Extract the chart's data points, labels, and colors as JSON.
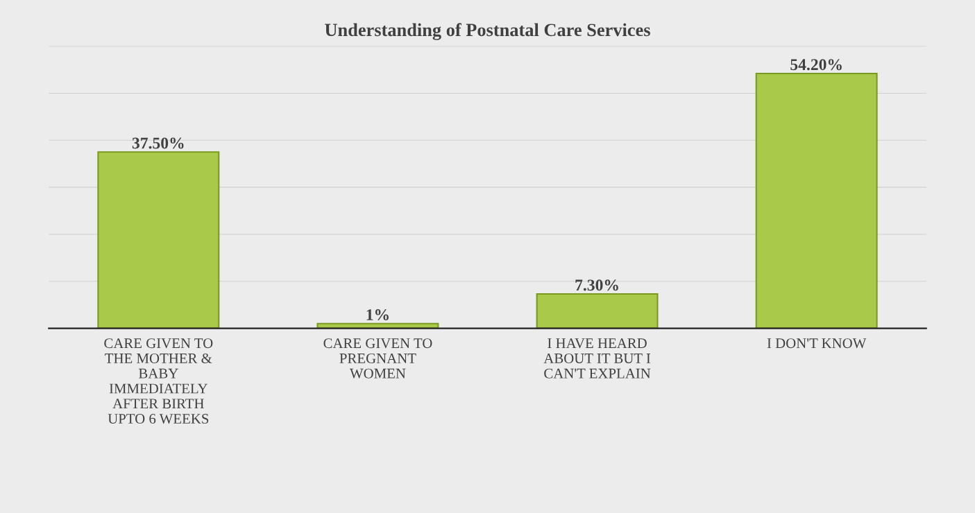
{
  "chart_data": {
    "type": "bar",
    "title": "Understanding of Postnatal Care Services",
    "categories": [
      "CARE GIVEN TO\nTHE MOTHER &\nBABY\nIMMEDIATELY\nAFTER BIRTH\nUPTO 6 WEEKS",
      "CARE GIVEN TO\nPREGNANT\nWOMEN",
      "I HAVE HEARD\nABOUT IT BUT I\nCAN'T EXPLAIN",
      "I DON'T KNOW"
    ],
    "values": [
      37.5,
      1,
      7.3,
      54.2
    ],
    "value_labels": [
      "37.50%",
      "1%",
      "7.30%",
      "54.20%"
    ],
    "color": "#a9c94a",
    "ylim": [
      0,
      60
    ],
    "yticks": [
      {
        "value": 0,
        "label": null
      },
      {
        "value": 10,
        "label": null
      },
      {
        "value": 20,
        "label": null
      },
      {
        "value": 30,
        "label": null
      },
      {
        "value": 40,
        "label": null
      },
      {
        "value": 50,
        "label": null
      },
      {
        "value": 60,
        "label": null
      }
    ],
    "tick_labels": "x",
    "grid": "y"
  }
}
